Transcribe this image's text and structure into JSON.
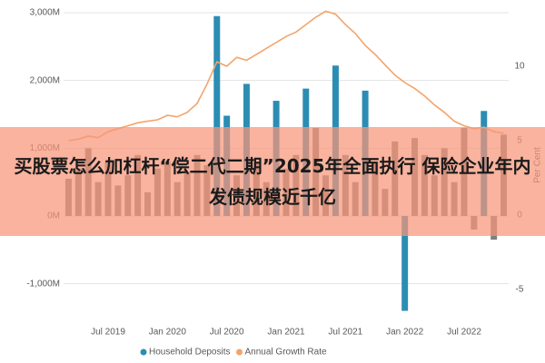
{
  "chart_data": {
    "type": "bar",
    "categories": [
      null,
      null,
      null,
      null,
      "Jul 2019",
      null,
      null,
      null,
      null,
      null,
      "Jan 2020",
      null,
      null,
      null,
      null,
      null,
      "Jul 2020",
      null,
      null,
      null,
      null,
      null,
      "Jan 2021",
      null,
      null,
      null,
      null,
      null,
      "Jul 2021",
      null,
      null,
      null,
      null,
      null,
      "Jan 2022",
      null,
      null,
      null,
      null,
      null,
      "Jul 2022",
      null,
      null,
      null,
      null
    ],
    "series": [
      {
        "name": "Household Deposits",
        "color": "#2b8db3",
        "values": [
          550,
          700,
          1000,
          500,
          800,
          450,
          600,
          900,
          350,
          700,
          800,
          500,
          650,
          900,
          750,
          2950,
          1480,
          600,
          1950,
          800,
          500,
          1700,
          700,
          900,
          1880,
          1300,
          600,
          2220,
          900,
          500,
          1850,
          800,
          400,
          1100,
          -1400,
          1150,
          900,
          600,
          1000,
          500,
          1300,
          -200,
          1550,
          -350,
          1200
        ],
        "colors": [
          "#7f7f7f",
          "#7f7f7f",
          "#7f7f7f",
          "#7f7f7f",
          "#7f7f7f",
          "#7f7f7f",
          "#7f7f7f",
          "#7f7f7f",
          "#7f7f7f",
          "#7f7f7f",
          "#7f7f7f",
          "#7f7f7f",
          "#7f7f7f",
          "#7f7f7f",
          "#7f7f7f",
          "#2b8db3",
          "#2b8db3",
          "#7f7f7f",
          "#2b8db3",
          "#7f7f7f",
          "#7f7f7f",
          "#2b8db3",
          "#7f7f7f",
          "#7f7f7f",
          "#2b8db3",
          "#7f7f7f",
          "#7f7f7f",
          "#2b8db3",
          "#7f7f7f",
          "#7f7f7f",
          "#2b8db3",
          "#7f7f7f",
          "#7f7f7f",
          "#7f7f7f",
          "#2b8db3",
          "#7f7f7f",
          "#7f7f7f",
          "#7f7f7f",
          "#7f7f7f",
          "#7f7f7f",
          "#7f7f7f",
          "#7f7f7f",
          "#2b8db3",
          "#7f7f7f",
          "#7f7f7f"
        ]
      },
      {
        "name": "Annual Growth Rate",
        "type": "line",
        "axis": "y2",
        "color": "#f3a46c",
        "values": [
          5.0,
          5.1,
          5.3,
          5.2,
          5.6,
          5.8,
          6.0,
          6.2,
          6.3,
          6.4,
          6.7,
          6.6,
          6.9,
          7.5,
          8.8,
          10.3,
          10.0,
          10.6,
          10.4,
          10.8,
          11.2,
          11.6,
          12.0,
          12.3,
          12.8,
          13.3,
          13.7,
          13.5,
          12.8,
          12.2,
          11.4,
          10.8,
          10.1,
          9.4,
          8.9,
          8.5,
          8.0,
          7.4,
          6.9,
          6.3,
          6.0,
          5.8,
          5.9,
          5.6,
          5.5
        ]
      }
    ],
    "ylim": [
      -1500,
      3000
    ],
    "yticks": [
      {
        "value": -1000,
        "label": "-1,000M"
      },
      {
        "value": 0,
        "label": "0M"
      },
      {
        "value": 1000,
        "label": "1,000M"
      },
      {
        "value": 2000,
        "label": "2,000M"
      },
      {
        "value": 3000,
        "label": "3,000M"
      }
    ],
    "y2lim": [
      -6.9,
      13.6
    ],
    "y2ticks": [
      -5,
      0,
      5,
      10
    ],
    "y2label": "Per Cent",
    "grid": true
  },
  "overlay_headline": "买股票怎么加杠杆“偿二代二期”2025年全面执行 保险企业年内发债规模近千亿"
}
